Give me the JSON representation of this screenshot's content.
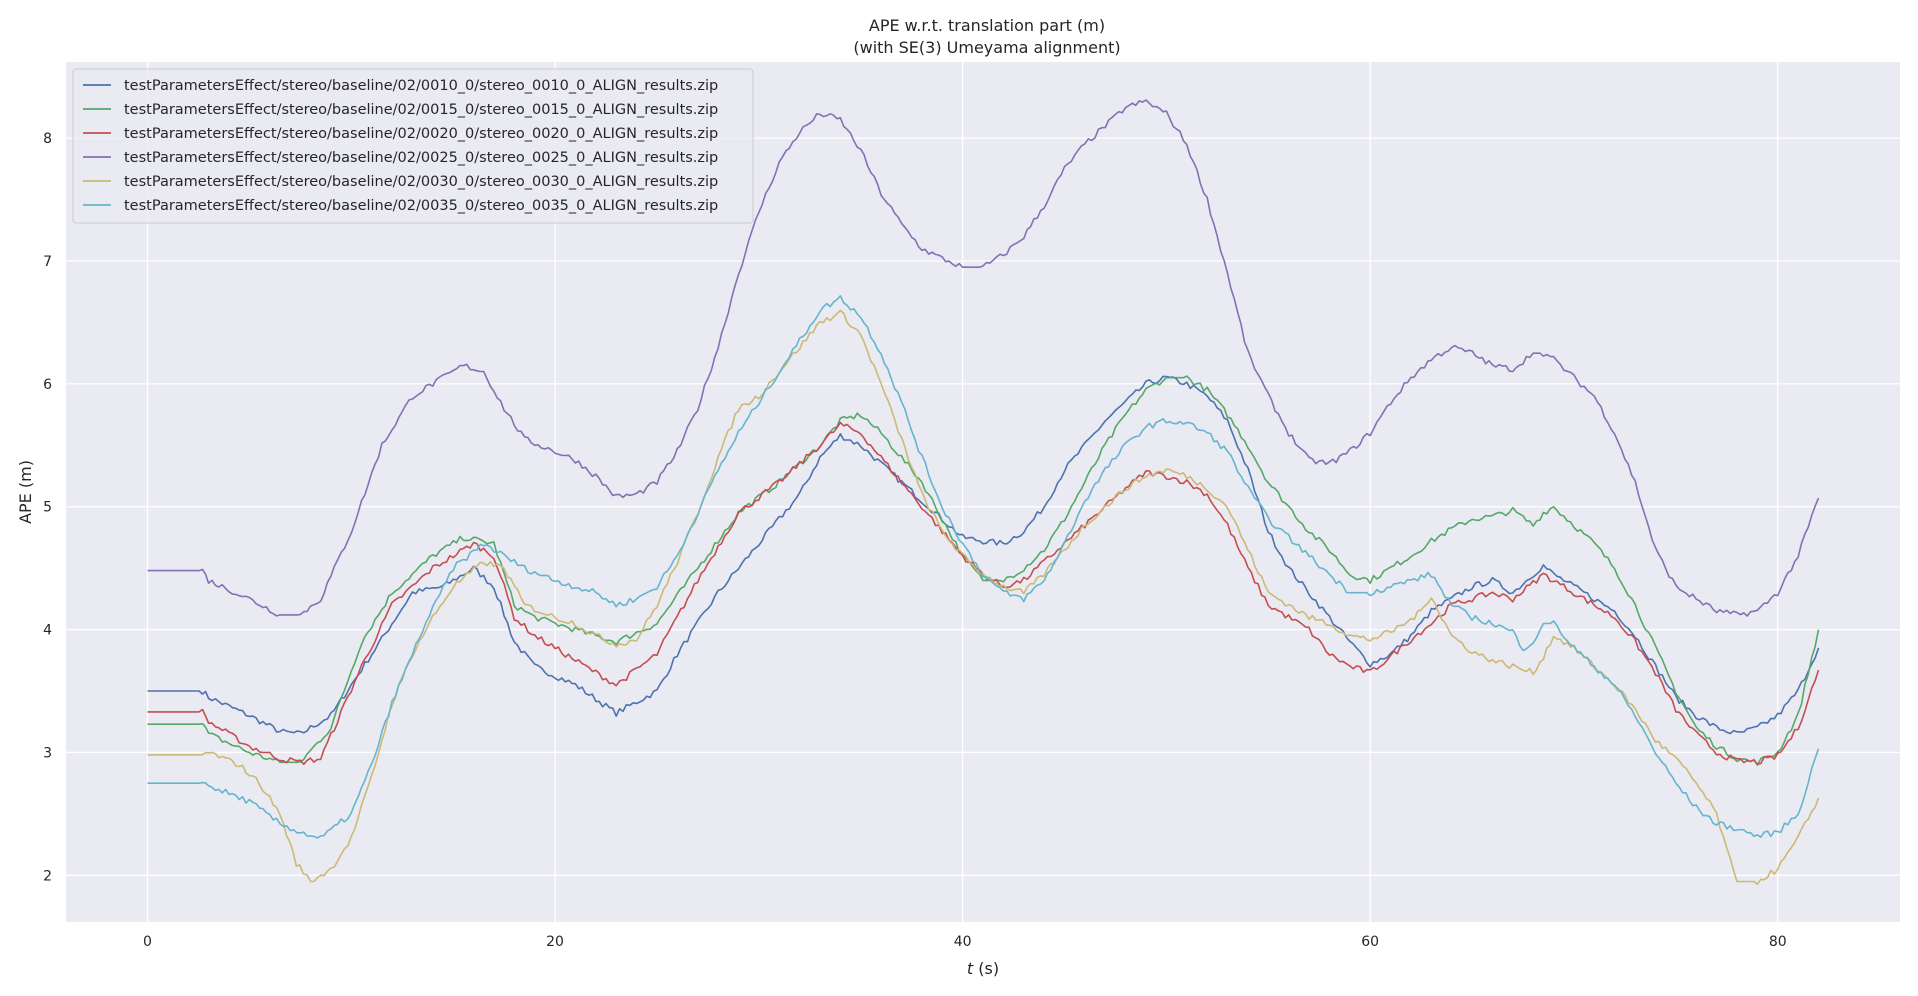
{
  "chart_data": {
    "type": "line",
    "title": "APE w.r.t. translation part (m)",
    "subtitle": "(with SE(3) Umeyama alignment)",
    "xlabel_var": "t",
    "xlabel_unit": " (s)",
    "ylabel": "APE (m)",
    "xlim": [
      -4,
      86
    ],
    "ylim": [
      1.62,
      8.62
    ],
    "xticks": [
      0,
      20,
      40,
      60,
      80
    ],
    "yticks": [
      2,
      3,
      4,
      5,
      6,
      7,
      8
    ],
    "grid": true,
    "background": "#eaeaf2",
    "legend_position": "top-left",
    "series": [
      {
        "name": "testParametersEffect/stereo/baseline/02/0010_0/stereo_0010_0_ALIGN_results.zip",
        "color": "#4c72b0",
        "x": [
          0,
          2.7,
          3,
          5,
          6.5,
          7.5,
          9,
          11,
          13,
          14.5,
          16,
          17,
          18,
          19,
          21,
          23,
          25,
          26,
          28,
          30,
          32,
          33,
          34,
          35,
          36,
          37,
          38,
          39,
          40,
          41,
          42,
          43,
          44,
          45,
          46,
          47,
          48,
          49,
          50,
          51,
          52,
          53,
          54,
          55,
          56,
          57,
          58,
          59,
          60,
          61,
          62,
          63,
          64,
          65,
          66,
          67,
          68,
          68.5,
          69,
          70,
          71,
          72,
          73,
          74,
          75,
          76,
          77,
          78,
          79,
          80,
          81,
          82
        ],
        "y": [
          3.5,
          3.5,
          3.45,
          3.3,
          3.17,
          3.15,
          3.3,
          3.8,
          4.3,
          4.35,
          4.5,
          4.35,
          3.9,
          3.7,
          3.55,
          3.32,
          3.5,
          3.8,
          4.3,
          4.7,
          5.1,
          5.4,
          5.58,
          5.5,
          5.35,
          5.2,
          5.05,
          4.9,
          4.75,
          4.72,
          4.7,
          4.8,
          5.0,
          5.3,
          5.5,
          5.7,
          5.85,
          6.0,
          6.05,
          6.0,
          5.9,
          5.7,
          5.3,
          4.8,
          4.5,
          4.3,
          4.1,
          3.9,
          3.72,
          3.8,
          3.95,
          4.15,
          4.25,
          4.35,
          4.4,
          4.3,
          4.45,
          4.52,
          4.45,
          4.35,
          4.25,
          4.15,
          3.95,
          3.7,
          3.45,
          3.3,
          3.2,
          3.15,
          3.2,
          3.3,
          3.5,
          3.85
        ]
      },
      {
        "name": "testParametersEffect/stereo/baseline/02/0015_0/stereo_0015_0_ALIGN_results.zip",
        "color": "#55a868",
        "x": [
          0,
          2.7,
          3,
          5,
          6.5,
          7.5,
          9,
          10.5,
          12,
          14,
          15.5,
          17,
          18,
          19,
          21,
          23,
          25,
          27,
          29,
          31,
          33,
          34,
          35,
          36,
          37,
          38,
          39,
          40,
          41,
          42,
          43,
          44,
          45,
          46,
          47,
          48,
          49,
          50,
          51,
          52,
          53,
          54,
          55,
          56,
          57,
          58,
          59,
          60,
          61,
          62,
          63,
          64,
          65,
          66,
          67,
          68,
          68.5,
          69,
          70,
          71,
          72,
          73,
          74,
          75,
          76,
          77,
          78,
          79,
          80,
          81,
          82
        ],
        "y": [
          3.23,
          3.23,
          3.15,
          3.0,
          2.92,
          2.92,
          3.2,
          3.9,
          4.3,
          4.6,
          4.75,
          4.7,
          4.2,
          4.1,
          4.0,
          3.9,
          4.05,
          4.5,
          4.95,
          5.2,
          5.5,
          5.7,
          5.75,
          5.6,
          5.4,
          5.2,
          4.9,
          4.6,
          4.4,
          4.4,
          4.5,
          4.65,
          4.9,
          5.2,
          5.5,
          5.75,
          5.95,
          6.05,
          6.05,
          5.95,
          5.75,
          5.5,
          5.2,
          5.0,
          4.8,
          4.65,
          4.45,
          4.4,
          4.5,
          4.6,
          4.72,
          4.82,
          4.9,
          4.92,
          4.97,
          4.85,
          4.95,
          5.0,
          4.85,
          4.7,
          4.5,
          4.2,
          3.85,
          3.5,
          3.2,
          3.05,
          2.95,
          2.92,
          3.0,
          3.3,
          4.0
        ]
      },
      {
        "name": "testParametersEffect/stereo/baseline/02/0020_0/stereo_0020_0_ALIGN_results.zip",
        "color": "#c44e52",
        "x": [
          0,
          2.7,
          3,
          5,
          6.5,
          7.5,
          8.5,
          10.5,
          12,
          14,
          16,
          17,
          18,
          19,
          21,
          23,
          25,
          27,
          29,
          31,
          33,
          34,
          35,
          36,
          37,
          38,
          39,
          40,
          41,
          42,
          43,
          44,
          45,
          46,
          47,
          48,
          49,
          50,
          51,
          52,
          53,
          54,
          55,
          56,
          57,
          58,
          59,
          60,
          61,
          62,
          63,
          64,
          65,
          66,
          67,
          68,
          68.5,
          69,
          70,
          71,
          72,
          73,
          74,
          75,
          76,
          77,
          78,
          79,
          80,
          81,
          82
        ],
        "y": [
          3.33,
          3.33,
          3.25,
          3.05,
          2.95,
          2.92,
          2.95,
          3.7,
          4.2,
          4.5,
          4.7,
          4.6,
          4.1,
          3.95,
          3.75,
          3.55,
          3.8,
          4.4,
          4.95,
          5.2,
          5.5,
          5.67,
          5.6,
          5.4,
          5.2,
          5.0,
          4.8,
          4.6,
          4.45,
          4.35,
          4.4,
          4.55,
          4.7,
          4.85,
          5.0,
          5.15,
          5.28,
          5.25,
          5.2,
          5.1,
          4.85,
          4.5,
          4.2,
          4.1,
          4.0,
          3.8,
          3.7,
          3.65,
          3.78,
          3.92,
          4.05,
          4.2,
          4.25,
          4.3,
          4.25,
          4.38,
          4.45,
          4.4,
          4.3,
          4.2,
          4.1,
          3.9,
          3.65,
          3.35,
          3.15,
          3.0,
          2.93,
          2.92,
          2.97,
          3.2,
          3.67
        ]
      },
      {
        "name": "testParametersEffect/stereo/baseline/02/0025_0/stereo_0025_0_ALIGN_results.zip",
        "color": "#8172b3",
        "x": [
          0,
          2.7,
          3,
          5,
          6.5,
          7.5,
          8.5,
          10,
          11.5,
          13,
          14,
          15.5,
          16.5,
          17.5,
          18.5,
          20,
          21,
          22,
          23,
          24,
          25,
          26,
          27,
          28,
          29,
          30,
          31,
          32,
          33,
          34,
          35,
          36,
          37,
          38,
          39,
          40,
          41,
          42,
          43,
          44,
          45,
          46,
          47,
          48,
          49,
          50,
          51,
          52,
          53,
          54,
          55,
          56,
          57,
          58,
          59,
          60,
          61,
          62,
          63,
          64,
          65,
          66,
          67,
          68,
          68.5,
          69,
          70,
          71,
          72,
          73,
          74,
          75,
          76,
          77,
          78,
          79,
          80,
          81,
          82
        ],
        "y": [
          4.48,
          4.48,
          4.4,
          4.25,
          4.12,
          4.12,
          4.25,
          4.8,
          5.5,
          5.9,
          6.0,
          6.15,
          6.1,
          5.8,
          5.55,
          5.45,
          5.38,
          5.25,
          5.08,
          5.1,
          5.2,
          5.45,
          5.8,
          6.3,
          6.9,
          7.4,
          7.8,
          8.05,
          8.2,
          8.15,
          7.9,
          7.55,
          7.3,
          7.1,
          7.02,
          6.95,
          6.95,
          7.05,
          7.2,
          7.45,
          7.75,
          7.95,
          8.1,
          8.25,
          8.3,
          8.2,
          7.95,
          7.5,
          6.9,
          6.25,
          5.9,
          5.6,
          5.38,
          5.35,
          5.45,
          5.6,
          5.85,
          6.05,
          6.2,
          6.3,
          6.25,
          6.15,
          6.12,
          6.25,
          6.25,
          6.2,
          6.05,
          5.9,
          5.6,
          5.2,
          4.65,
          4.35,
          4.25,
          4.15,
          4.12,
          4.15,
          4.3,
          4.6,
          5.07
        ]
      },
      {
        "name": "testParametersEffect/stereo/baseline/02/0030_0/stereo_0030_0_ALIGN_results.zip",
        "color": "#ccb974",
        "x": [
          0,
          2.7,
          3,
          4.5,
          5.5,
          6.5,
          7.3,
          8,
          9,
          10,
          11,
          12,
          13,
          14,
          15,
          16.5,
          17.5,
          18.5,
          20,
          21,
          22,
          23,
          24,
          25,
          26,
          27,
          28,
          29,
          30,
          31,
          32,
          33,
          34,
          35,
          36,
          37,
          38,
          39,
          40,
          41,
          42,
          43,
          44,
          45,
          46,
          47,
          48,
          49,
          50,
          51,
          52,
          53,
          54,
          55,
          56,
          57,
          58,
          59,
          60,
          61,
          62,
          62.5,
          63,
          63.5,
          64,
          65,
          66,
          67,
          68,
          68.5,
          69,
          70,
          71,
          72,
          73,
          74,
          75,
          76,
          77,
          77.5,
          78,
          79,
          80,
          81,
          82
        ],
        "y": [
          2.98,
          2.98,
          3.0,
          2.9,
          2.75,
          2.5,
          2.1,
          1.95,
          2.05,
          2.3,
          2.8,
          3.4,
          3.8,
          4.1,
          4.35,
          4.55,
          4.5,
          4.2,
          4.1,
          4.05,
          3.95,
          3.88,
          3.92,
          4.2,
          4.55,
          4.95,
          5.4,
          5.8,
          5.9,
          6.1,
          6.3,
          6.5,
          6.58,
          6.4,
          6.0,
          5.55,
          5.1,
          4.8,
          4.6,
          4.45,
          4.35,
          4.3,
          4.45,
          4.65,
          4.85,
          5.0,
          5.15,
          5.25,
          5.3,
          5.25,
          5.15,
          5.0,
          4.65,
          4.3,
          4.2,
          4.1,
          4.05,
          3.95,
          3.92,
          3.98,
          4.08,
          4.15,
          4.28,
          4.1,
          3.95,
          3.82,
          3.75,
          3.7,
          3.65,
          3.78,
          3.95,
          3.85,
          3.7,
          3.55,
          3.35,
          3.1,
          2.95,
          2.75,
          2.5,
          2.2,
          1.95,
          1.95,
          2.05,
          2.3,
          2.63
        ]
      },
      {
        "name": "testParametersEffect/stereo/baseline/02/0035_0/stereo_0035_0_ALIGN_results.zip",
        "color": "#64b5cd",
        "x": [
          0,
          2.7,
          3,
          5,
          6.5,
          7.5,
          8.5,
          10,
          11,
          12,
          13.5,
          15,
          16.5,
          17.5,
          18.5,
          20,
          21,
          22,
          23,
          24,
          25,
          26,
          27,
          28,
          29,
          30,
          31,
          32,
          33,
          34,
          35,
          36,
          37,
          38,
          39,
          40,
          41,
          42,
          43,
          44,
          45,
          46,
          47,
          48,
          49,
          50,
          51,
          52,
          53,
          54,
          55,
          56,
          57,
          58,
          59,
          60,
          61,
          62,
          63,
          64,
          65,
          66,
          67,
          67.5,
          68,
          68.5,
          69,
          70,
          71,
          72,
          73,
          74,
          75,
          76,
          77,
          78,
          79,
          80,
          81,
          82
        ],
        "y": [
          2.75,
          2.75,
          2.73,
          2.6,
          2.42,
          2.35,
          2.3,
          2.5,
          2.9,
          3.4,
          4.0,
          4.5,
          4.7,
          4.6,
          4.5,
          4.4,
          4.35,
          4.3,
          4.2,
          4.25,
          4.35,
          4.6,
          4.95,
          5.3,
          5.6,
          5.85,
          6.1,
          6.35,
          6.6,
          6.7,
          6.55,
          6.25,
          5.85,
          5.4,
          5.0,
          4.7,
          4.45,
          4.3,
          4.25,
          4.4,
          4.7,
          5.05,
          5.3,
          5.5,
          5.65,
          5.7,
          5.68,
          5.6,
          5.45,
          5.15,
          4.9,
          4.75,
          4.6,
          4.45,
          4.3,
          4.3,
          4.35,
          4.4,
          4.45,
          4.2,
          4.1,
          4.05,
          3.98,
          3.85,
          3.9,
          4.05,
          4.05,
          3.85,
          3.7,
          3.55,
          3.3,
          3.0,
          2.75,
          2.55,
          2.42,
          2.38,
          2.32,
          2.35,
          2.5,
          3.03
        ]
      }
    ]
  }
}
